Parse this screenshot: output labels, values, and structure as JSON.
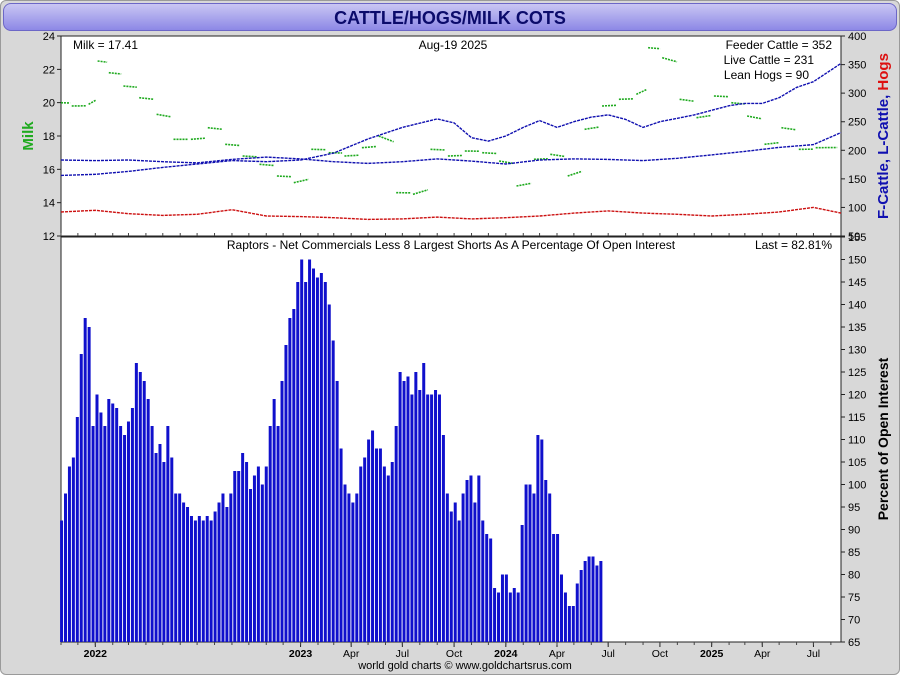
{
  "title": "CATTLE/HOGS/MILK COTS",
  "footer": "world gold charts © www.goldchartsrus.com",
  "colors": {
    "milk": "#1faa1f",
    "feeder": "#1010b0",
    "live": "#1010b0",
    "hogs": "#cc1010",
    "bars": "#1010cc",
    "title_bg": "#a9a5ef",
    "frame": "#d8d8d8"
  },
  "chart_data": [
    {
      "type": "line",
      "title": "",
      "date_label": "Aug-19  2025",
      "readouts": {
        "milk": "Milk = 17.41",
        "feeder": "Feeder Cattle = 352",
        "live": "Live Cattle = 231",
        "hogs": "Lean Hogs = 90"
      },
      "left_axis": {
        "label": "Milk",
        "range": [
          12,
          24
        ],
        "ticks": [
          12,
          14,
          16,
          18,
          20,
          22,
          24
        ]
      },
      "right_axis": {
        "label_parts": [
          "F-Cattle",
          ", ",
          "L-Cattle",
          ", ",
          "Hogs"
        ],
        "range": [
          50,
          400
        ],
        "ticks": [
          50,
          100,
          150,
          200,
          250,
          300,
          350,
          400
        ]
      },
      "x_range": [
        "2021-11-01",
        "2025-08-19"
      ],
      "series": [
        {
          "name": "Milk",
          "axis": "left",
          "style": "segments",
          "points": [
            [
              "2021-11-01",
              20.0
            ],
            [
              "2021-11-20",
              19.8
            ],
            [
              "2021-12-20",
              19.9
            ],
            [
              "2022-01-05",
              22.5
            ],
            [
              "2022-01-25",
              21.8
            ],
            [
              "2022-02-20",
              21.0
            ],
            [
              "2022-03-20",
              20.3
            ],
            [
              "2022-04-20",
              19.3
            ],
            [
              "2022-05-20",
              17.8
            ],
            [
              "2022-06-20",
              17.8
            ],
            [
              "2022-07-20",
              18.5
            ],
            [
              "2022-08-20",
              17.5
            ],
            [
              "2022-09-20",
              16.8
            ],
            [
              "2022-10-20",
              16.3
            ],
            [
              "2022-11-20",
              15.6
            ],
            [
              "2022-12-20",
              15.2
            ],
            [
              "2023-01-20",
              17.2
            ],
            [
              "2023-02-20",
              17.0
            ],
            [
              "2023-03-20",
              16.8
            ],
            [
              "2023-04-20",
              17.3
            ],
            [
              "2023-05-20",
              18.0
            ],
            [
              "2023-06-20",
              14.6
            ],
            [
              "2023-07-20",
              14.5
            ],
            [
              "2023-08-20",
              17.2
            ],
            [
              "2023-09-20",
              16.8
            ],
            [
              "2023-10-20",
              17.1
            ],
            [
              "2023-11-20",
              17.0
            ],
            [
              "2023-12-20",
              16.5
            ],
            [
              "2024-01-20",
              15.0
            ],
            [
              "2024-02-20",
              16.6
            ],
            [
              "2024-03-20",
              16.9
            ],
            [
              "2024-04-20",
              15.6
            ],
            [
              "2024-05-20",
              18.4
            ],
            [
              "2024-06-20",
              19.8
            ],
            [
              "2024-07-20",
              20.2
            ],
            [
              "2024-08-20",
              20.5
            ],
            [
              "2024-09-10",
              23.3
            ],
            [
              "2024-10-05",
              22.7
            ],
            [
              "2024-11-05",
              20.2
            ],
            [
              "2024-12-05",
              19.1
            ],
            [
              "2025-01-05",
              20.4
            ],
            [
              "2025-02-05",
              20.0
            ],
            [
              "2025-03-05",
              19.2
            ],
            [
              "2025-04-05",
              17.5
            ],
            [
              "2025-05-05",
              18.5
            ],
            [
              "2025-06-05",
              17.2
            ],
            [
              "2025-07-05",
              17.3
            ],
            [
              "2025-08-19",
              17.4
            ]
          ]
        },
        {
          "name": "Feeder Cattle",
          "axis": "right",
          "style": "line",
          "points": [
            [
              "2021-11-01",
              156
            ],
            [
              "2022-01-01",
              158
            ],
            [
              "2022-03-01",
              163
            ],
            [
              "2022-05-01",
              170
            ],
            [
              "2022-07-01",
              176
            ],
            [
              "2022-09-01",
              182
            ],
            [
              "2022-11-01",
              180
            ],
            [
              "2023-01-01",
              183
            ],
            [
              "2023-03-01",
              195
            ],
            [
              "2023-05-01",
              220
            ],
            [
              "2023-07-01",
              240
            ],
            [
              "2023-09-01",
              255
            ],
            [
              "2023-10-01",
              248
            ],
            [
              "2023-11-01",
              222
            ],
            [
              "2023-12-01",
              216
            ],
            [
              "2024-01-01",
              225
            ],
            [
              "2024-02-01",
              240
            ],
            [
              "2024-03-01",
              252
            ],
            [
              "2024-04-01",
              240
            ],
            [
              "2024-05-01",
              250
            ],
            [
              "2024-06-01",
              258
            ],
            [
              "2024-07-01",
              262
            ],
            [
              "2024-08-01",
              254
            ],
            [
              "2024-09-01",
              240
            ],
            [
              "2024-10-01",
              250
            ],
            [
              "2024-11-01",
              256
            ],
            [
              "2024-12-01",
              262
            ],
            [
              "2025-01-01",
              270
            ],
            [
              "2025-02-01",
              278
            ],
            [
              "2025-03-01",
              282
            ],
            [
              "2025-04-01",
              282
            ],
            [
              "2025-05-01",
              292
            ],
            [
              "2025-06-01",
              310
            ],
            [
              "2025-07-01",
              320
            ],
            [
              "2025-08-19",
              352
            ]
          ]
        },
        {
          "name": "Live Cattle",
          "axis": "right",
          "style": "line",
          "points": [
            [
              "2021-11-01",
              183
            ],
            [
              "2022-01-01",
              182
            ],
            [
              "2022-03-01",
              183
            ],
            [
              "2022-05-01",
              180
            ],
            [
              "2022-07-01",
              178
            ],
            [
              "2022-09-01",
              184
            ],
            [
              "2022-11-01",
              188
            ],
            [
              "2023-01-01",
              185
            ],
            [
              "2023-03-01",
              180
            ],
            [
              "2023-05-01",
              177
            ],
            [
              "2023-07-01",
              180
            ],
            [
              "2023-09-01",
              185
            ],
            [
              "2023-11-01",
              181
            ],
            [
              "2024-01-01",
              176
            ],
            [
              "2024-03-01",
              183
            ],
            [
              "2024-05-01",
              185
            ],
            [
              "2024-07-01",
              184
            ],
            [
              "2024-09-01",
              182
            ],
            [
              "2024-11-01",
              186
            ],
            [
              "2025-01-01",
              192
            ],
            [
              "2025-03-01",
              198
            ],
            [
              "2025-05-01",
              205
            ],
            [
              "2025-07-01",
              210
            ],
            [
              "2025-08-19",
              231
            ]
          ]
        },
        {
          "name": "Lean Hogs",
          "axis": "right",
          "style": "line",
          "points": [
            [
              "2021-11-01",
              92
            ],
            [
              "2022-01-01",
              95
            ],
            [
              "2022-03-01",
              89
            ],
            [
              "2022-05-01",
              86
            ],
            [
              "2022-07-01",
              88
            ],
            [
              "2022-09-01",
              96
            ],
            [
              "2022-11-01",
              85
            ],
            [
              "2023-01-01",
              84
            ],
            [
              "2023-03-01",
              82
            ],
            [
              "2023-05-01",
              79
            ],
            [
              "2023-07-01",
              80
            ],
            [
              "2023-09-01",
              83
            ],
            [
              "2023-11-01",
              80
            ],
            [
              "2024-01-01",
              82
            ],
            [
              "2024-03-01",
              85
            ],
            [
              "2024-05-01",
              90
            ],
            [
              "2024-07-01",
              94
            ],
            [
              "2024-09-01",
              90
            ],
            [
              "2024-11-01",
              88
            ],
            [
              "2025-01-01",
              85
            ],
            [
              "2025-03-01",
              88
            ],
            [
              "2025-05-01",
              92
            ],
            [
              "2025-07-01",
              100
            ],
            [
              "2025-08-19",
              90
            ]
          ]
        }
      ]
    },
    {
      "type": "bar",
      "title": "Raptors - Net Commercials Less 8 Largest Shorts As A Percentage Of Open Interest",
      "last_label": "Last = 82.81%",
      "ylabel": "Percent of Open Interest",
      "ylim": [
        65,
        155
      ],
      "yticks": [
        65,
        70,
        75,
        80,
        85,
        90,
        95,
        100,
        105,
        110,
        115,
        120,
        125,
        130,
        135,
        140,
        145,
        150,
        155
      ],
      "x_range": [
        "2021-11-01",
        "2025-08-19"
      ],
      "x_tick_labels": [
        {
          "date": "2022-01-01",
          "label": "2022",
          "bold": true
        },
        {
          "date": "2023-01-01",
          "label": "2023",
          "bold": true
        },
        {
          "date": "2023-04-01",
          "label": "Apr",
          "bold": false
        },
        {
          "date": "2023-07-01",
          "label": "Jul",
          "bold": false
        },
        {
          "date": "2023-10-01",
          "label": "Oct",
          "bold": false
        },
        {
          "date": "2024-01-01",
          "label": "2024",
          "bold": true
        },
        {
          "date": "2024-04-01",
          "label": "Apr",
          "bold": false
        },
        {
          "date": "2024-07-01",
          "label": "Jul",
          "bold": false
        },
        {
          "date": "2024-10-01",
          "label": "Oct",
          "bold": false
        },
        {
          "date": "2025-01-01",
          "label": "2025",
          "bold": true
        },
        {
          "date": "2025-04-01",
          "label": "Apr",
          "bold": false
        },
        {
          "date": "2025-07-01",
          "label": "Jul",
          "bold": false
        }
      ],
      "bar_start_date": "2021-11-02",
      "bar_interval_days": 7,
      "values": [
        92,
        98,
        104,
        106,
        115,
        129,
        137,
        135,
        113,
        120,
        116,
        113,
        119,
        118,
        117,
        113,
        111,
        114,
        117,
        127,
        125,
        123,
        119,
        113,
        107,
        109,
        105,
        113,
        106,
        98,
        98,
        96,
        95,
        93,
        92,
        93,
        92,
        93,
        92,
        94,
        96,
        98,
        95,
        98,
        103,
        103,
        107,
        105,
        99,
        102,
        104,
        100,
        104,
        113,
        119,
        113,
        123,
        131,
        137,
        139,
        145,
        150,
        145,
        150,
        148,
        146,
        147,
        145,
        140,
        132,
        123,
        108,
        100,
        98,
        96,
        98,
        104,
        106,
        110,
        112,
        108,
        108,
        104,
        102,
        105,
        113,
        125,
        123,
        124,
        120,
        125,
        121,
        127,
        120,
        120,
        121,
        120,
        111,
        98,
        94,
        96,
        92,
        98,
        101,
        102,
        96,
        102,
        92,
        89,
        88,
        77,
        76,
        80,
        80,
        76,
        77,
        76,
        91,
        100,
        100,
        98,
        111,
        110,
        101,
        98,
        89,
        89,
        80,
        76,
        73,
        73,
        78,
        81,
        83,
        84,
        84,
        82,
        83
      ]
    }
  ]
}
